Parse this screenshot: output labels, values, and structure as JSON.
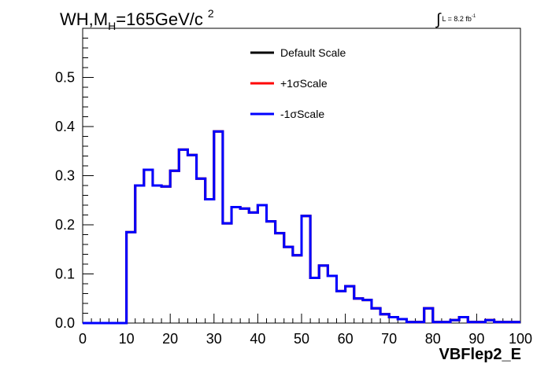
{
  "chart_data": {
    "type": "line",
    "title_main": "WH,M",
    "title_sub": "H",
    "title_tail": "=165GeV/c",
    "title_sup": "2",
    "lumi_text": "L = 8.2 fb",
    "lumi_sup": "-1",
    "xlabel": "VBFlep2_E",
    "xlim": [
      0,
      100
    ],
    "ylim": [
      0,
      0.6
    ],
    "x_ticks": [
      "0",
      "10",
      "20",
      "30",
      "40",
      "50",
      "60",
      "70",
      "80",
      "90",
      "100"
    ],
    "y_ticks": [
      "0.0",
      "0.1",
      "0.2",
      "0.3",
      "0.4",
      "0.5"
    ],
    "bin_edges_start": 0,
    "bin_width": 2,
    "legend_position": "top-center",
    "series": [
      {
        "name": "Default Scale",
        "color": "#000000",
        "values": [
          0,
          0,
          0,
          0,
          0,
          0.185,
          0.28,
          0.312,
          0.28,
          0.278,
          0.31,
          0.353,
          0.342,
          0.294,
          0.252,
          0.39,
          0.203,
          0.236,
          0.233,
          0.225,
          0.24,
          0.207,
          0.183,
          0.155,
          0.138,
          0.218,
          0.092,
          0.117,
          0.096,
          0.065,
          0.075,
          0.05,
          0.047,
          0.03,
          0.018,
          0.012,
          0.008,
          0.002,
          0.002,
          0.03,
          0.002,
          0.002,
          0.006,
          0.012,
          0.002,
          0.002,
          0.006,
          0.002,
          0.002,
          0.002
        ]
      },
      {
        "name": "+1σScale",
        "color": "#ff0000",
        "values": [
          0,
          0,
          0,
          0,
          0,
          0.185,
          0.28,
          0.312,
          0.28,
          0.278,
          0.31,
          0.353,
          0.342,
          0.294,
          0.252,
          0.39,
          0.203,
          0.236,
          0.233,
          0.225,
          0.24,
          0.207,
          0.183,
          0.155,
          0.138,
          0.218,
          0.092,
          0.117,
          0.096,
          0.065,
          0.075,
          0.05,
          0.047,
          0.03,
          0.018,
          0.012,
          0.008,
          0.002,
          0.002,
          0.03,
          0.002,
          0.002,
          0.006,
          0.012,
          0.002,
          0.002,
          0.006,
          0.002,
          0.002,
          0.002
        ]
      },
      {
        "name": "-1σScale",
        "color": "#0000ff",
        "values": [
          0,
          0,
          0,
          0,
          0,
          0.185,
          0.28,
          0.312,
          0.28,
          0.278,
          0.31,
          0.353,
          0.342,
          0.294,
          0.252,
          0.39,
          0.203,
          0.236,
          0.233,
          0.225,
          0.24,
          0.207,
          0.183,
          0.155,
          0.138,
          0.218,
          0.092,
          0.117,
          0.096,
          0.065,
          0.075,
          0.05,
          0.047,
          0.03,
          0.018,
          0.012,
          0.008,
          0.002,
          0.002,
          0.03,
          0.002,
          0.002,
          0.006,
          0.012,
          0.002,
          0.002,
          0.006,
          0.002,
          0.002,
          0.002
        ]
      }
    ]
  }
}
